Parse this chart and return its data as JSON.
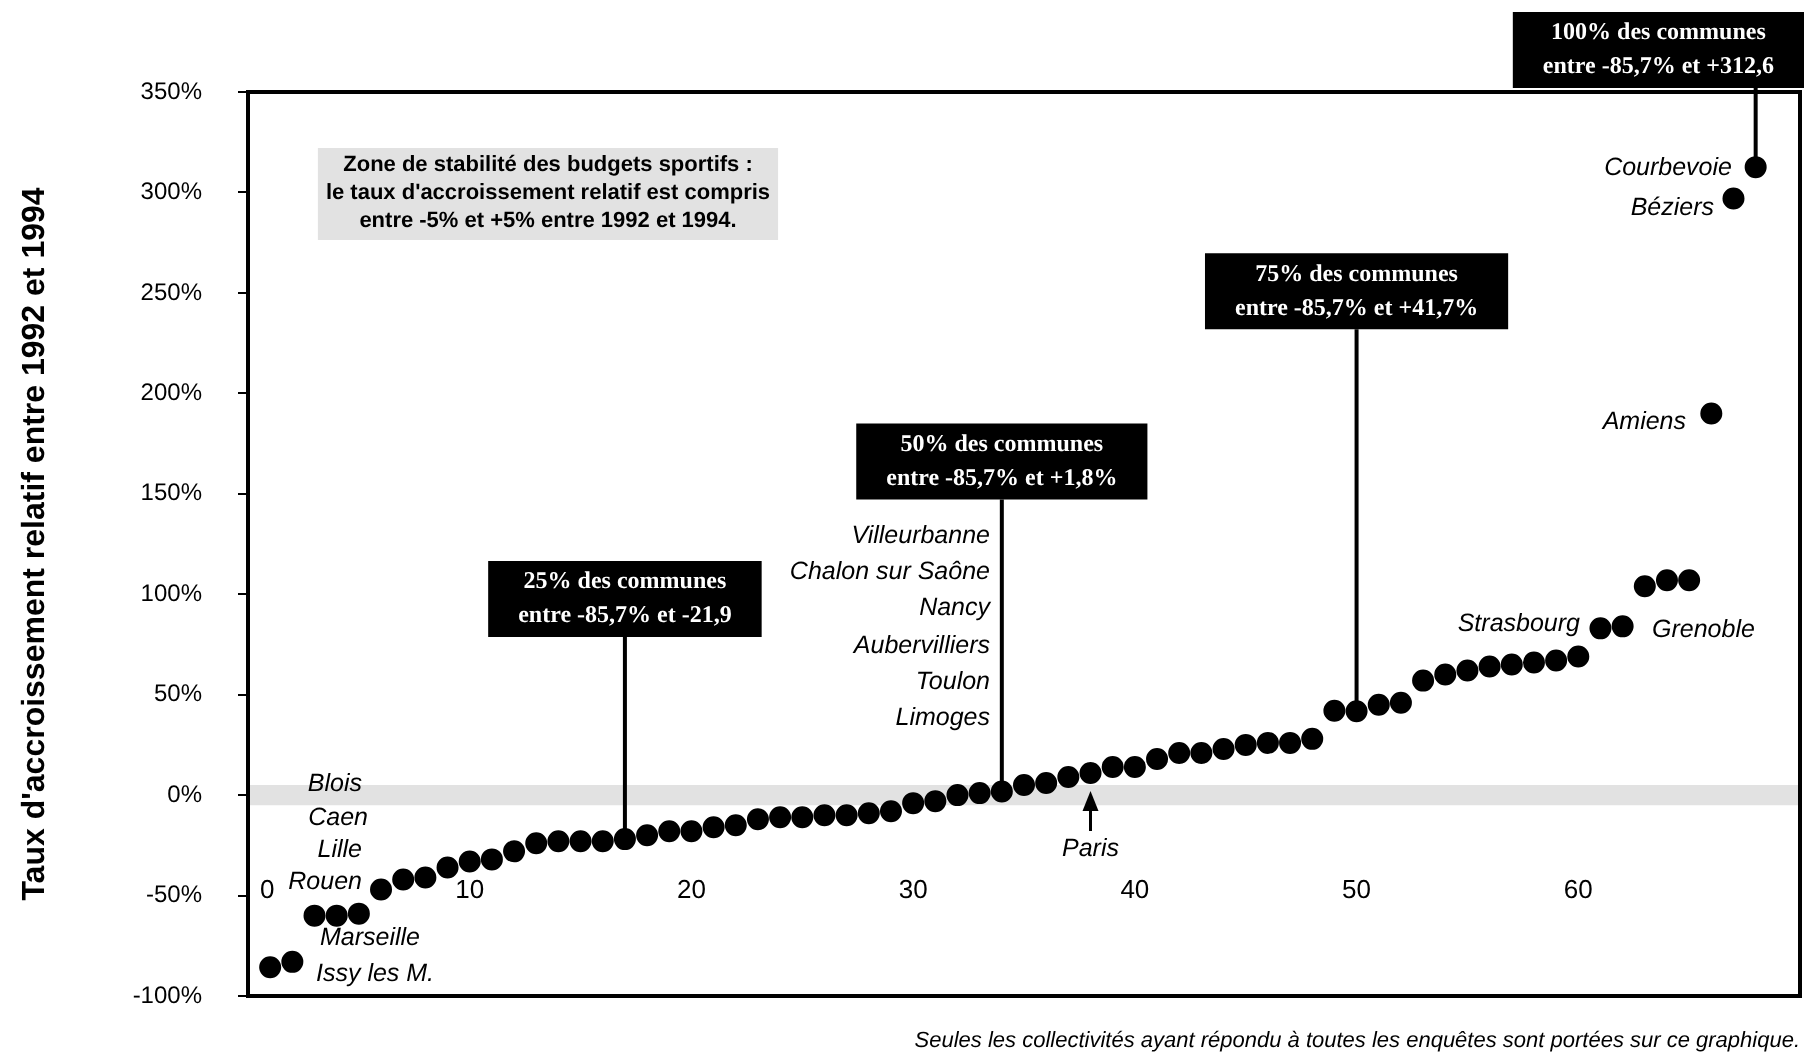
{
  "chart_data": {
    "type": "scatter",
    "ylabel": "Taux d'accroissement relatif entre 1992 et 1994",
    "xlim": [
      0,
      70
    ],
    "xticks": [
      0,
      10,
      20,
      30,
      40,
      50,
      60
    ],
    "ylim": [
      -100,
      350
    ],
    "yticks": [
      {
        "value": -100,
        "label": "-100%"
      },
      {
        "value": -50,
        "label": "-50%"
      },
      {
        "value": 0,
        "label": "0%"
      },
      {
        "value": 50,
        "label": "50%"
      },
      {
        "value": 100,
        "label": "100%"
      },
      {
        "value": 150,
        "label": "150%"
      },
      {
        "value": 200,
        "label": "200%"
      },
      {
        "value": 250,
        "label": "250%"
      },
      {
        "value": 300,
        "label": "300%"
      },
      {
        "value": 350,
        "label": "350%"
      }
    ],
    "grid": false,
    "legend": false,
    "marker": "circle",
    "series": [
      {
        "color": "#000000",
        "x": [
          1,
          2,
          3,
          4,
          5,
          6,
          7,
          8,
          9,
          10,
          11,
          12,
          13,
          14,
          15,
          16,
          17,
          18,
          19,
          20,
          21,
          22,
          23,
          24,
          25,
          26,
          27,
          28,
          29,
          30,
          31,
          32,
          33,
          34,
          35,
          36,
          37,
          38,
          39,
          40,
          41,
          42,
          43,
          44,
          45,
          46,
          47,
          48,
          49,
          50,
          51,
          52,
          53,
          54,
          55,
          56,
          57,
          58,
          59,
          60,
          61,
          62,
          63,
          64,
          65,
          66,
          67,
          68
        ],
        "values": [
          -85.7,
          -83,
          -60,
          -60,
          -59,
          -47,
          -42,
          -41,
          -36,
          -33,
          -32,
          -28,
          -24,
          -23,
          -23,
          -23,
          -21.9,
          -20,
          -18,
          -18,
          -16,
          -15,
          -12,
          -11,
          -11,
          -10,
          -10,
          -9,
          -8,
          -4,
          -3,
          0,
          1,
          1.8,
          5,
          6,
          9,
          11,
          14,
          14,
          18,
          21,
          21,
          23,
          25,
          26,
          26,
          28,
          42,
          41.7,
          45,
          46,
          57,
          60,
          62,
          64,
          65,
          66,
          67,
          69,
          83,
          84,
          104,
          107,
          107,
          190,
          297,
          312.6
        ]
      }
    ],
    "bands": [
      {
        "axis": "y",
        "from": -5,
        "to": 5,
        "color": "#e2e2e2"
      }
    ],
    "annotations": [
      "Zone de stabilité des budgets sportifs :\nle taux d'accroissement relatif est compris\nentre -5% et +5% entre 1992 et 1994.",
      "Seules les collectivités ayant répondu à toutes les enquêtes sont portées sur ce graphique.",
      {
        "text": "25% des communes\nentre -85,7% et -21,9",
        "x": 17,
        "y": -21.9
      },
      {
        "text": "50% des communes\nentre -85,7% et +1,8%",
        "x": 34,
        "y": 1.8
      },
      {
        "text": "75% des communes\nentre -85,7% et +41,7%",
        "x": 50,
        "y": 41.7
      },
      {
        "text": "100% des communes\nentre -85,7% et +312,6",
        "x": 68,
        "y": 312.6
      },
      "Blois",
      "Caen",
      "Lille",
      "Rouen",
      "Marseille",
      "Issy les M.",
      "Villeurbanne",
      "Chalon sur Saône",
      "Nancy",
      "Aubervilliers",
      "Toulon",
      "Limoges",
      {
        "text": "Paris",
        "x": 38,
        "y": 11
      },
      "Strasbourg",
      "Grenoble",
      "Amiens",
      "Béziers",
      "Courbevoie"
    ]
  }
}
